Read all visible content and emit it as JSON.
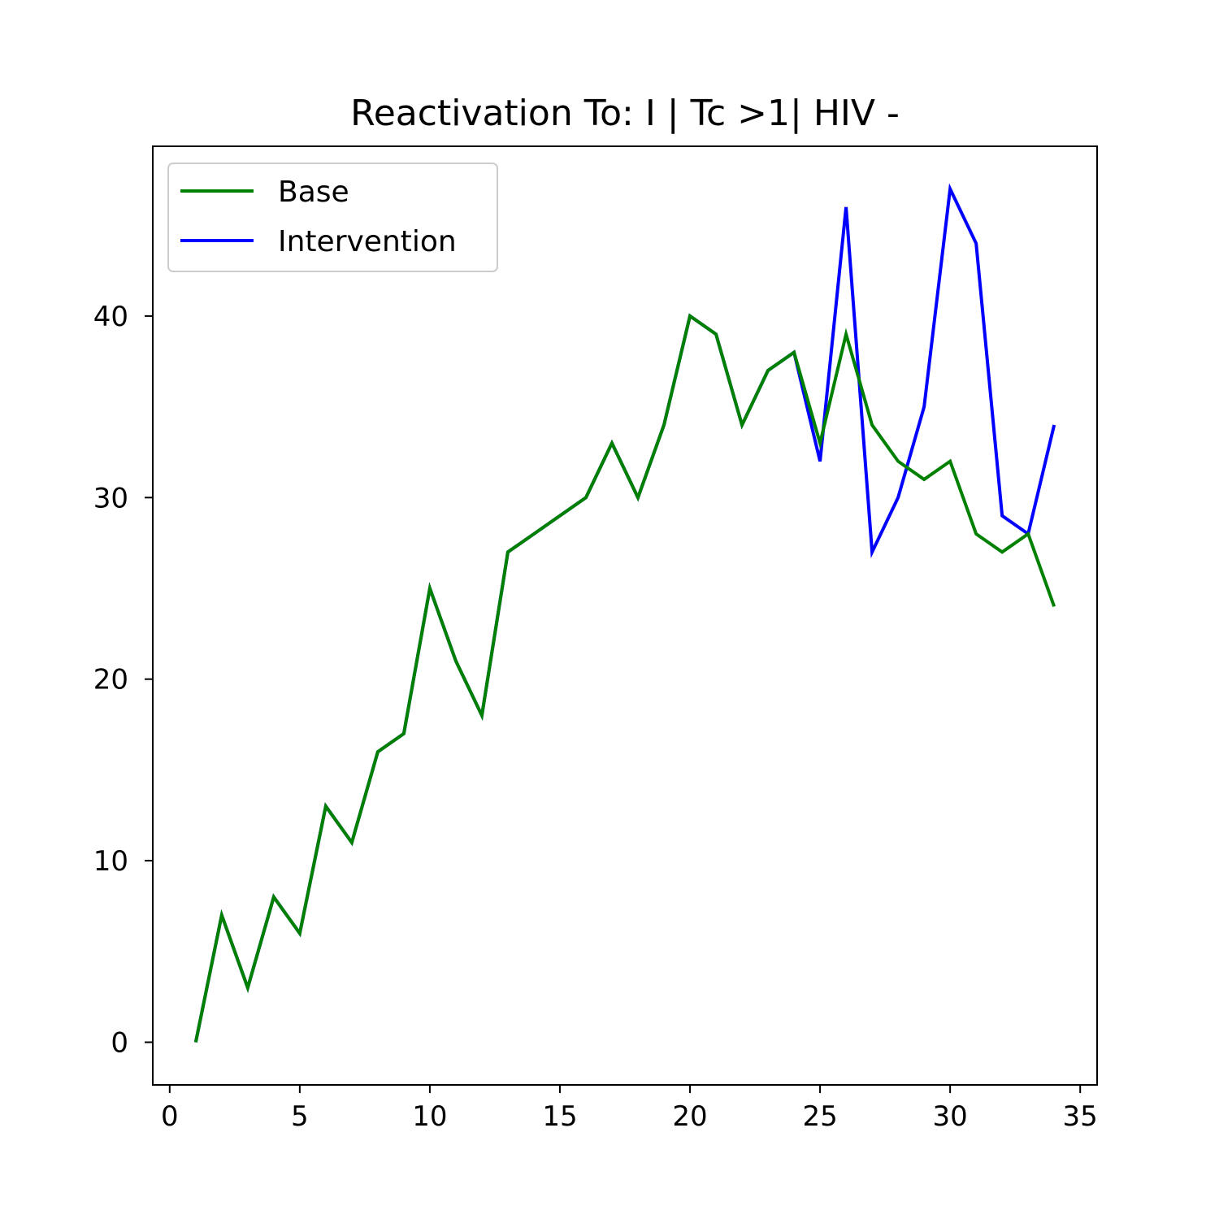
{
  "chart_data": {
    "type": "line",
    "title": "Reactivation To: I | Tc >1| HIV -",
    "xlabel": "",
    "ylabel": "",
    "xlim": [
      -0.65,
      35.65
    ],
    "ylim": [
      -2.35,
      49.35
    ],
    "xticks": [
      0,
      5,
      10,
      15,
      20,
      25,
      30,
      35
    ],
    "yticks": [
      0,
      10,
      20,
      30,
      40
    ],
    "grid": false,
    "legend_position": "top-left",
    "x": [
      1,
      2,
      3,
      4,
      5,
      6,
      7,
      8,
      9,
      10,
      11,
      12,
      13,
      14,
      15,
      16,
      17,
      18,
      19,
      20,
      21,
      22,
      23,
      24,
      25,
      26,
      27,
      28,
      29,
      30,
      31,
      32,
      33,
      34
    ],
    "series": [
      {
        "name": "Base",
        "color": "#008000",
        "values": [
          0,
          7,
          3,
          8,
          6,
          13,
          11,
          16,
          17,
          25,
          21,
          18,
          27,
          28,
          29,
          30,
          33,
          30,
          34,
          40,
          39,
          34,
          37,
          38,
          33,
          39,
          34,
          32,
          31,
          32,
          28,
          27,
          28,
          24
        ]
      },
      {
        "name": "Intervention",
        "color": "#0000ff",
        "values": [
          0,
          7,
          3,
          8,
          6,
          13,
          11,
          16,
          17,
          25,
          21,
          18,
          27,
          28,
          29,
          30,
          33,
          30,
          34,
          40,
          39,
          34,
          37,
          38,
          32,
          46,
          27,
          30,
          35,
          47,
          44,
          29,
          28,
          34
        ]
      }
    ]
  }
}
